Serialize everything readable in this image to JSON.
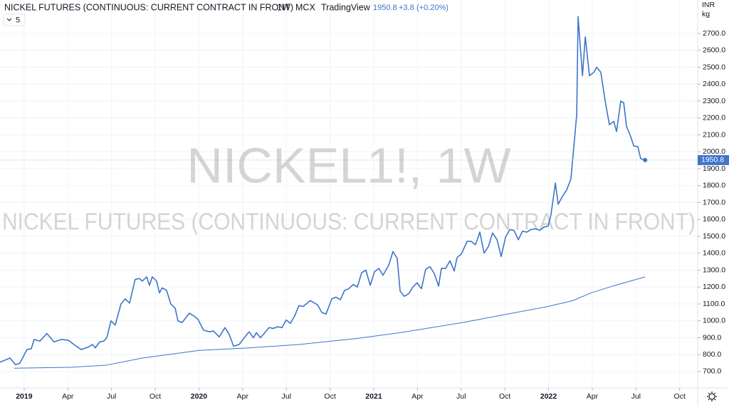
{
  "header": {
    "symbol_name": "NICKEL FUTURES (CONTINUOUS: CURRENT CONTRACT IN FRONT)",
    "interval": "1W",
    "exchange": "MCX",
    "source": "TradingView",
    "change": "+3.8",
    "change_percent": "(+0.20%)",
    "indicator_length": "5"
  },
  "axis_units": {
    "currency": "INR",
    "unit": "kg"
  },
  "watermark": {
    "ticker": "NICKEL1!, 1W",
    "description": "NICKEL FUTURES (CONTINUOUS: CURRENT CONTRACT IN FRONT)"
  },
  "chart_data": {
    "type": "line",
    "grid": true,
    "xlim": [
      2018.862,
      2022.853
    ],
    "ylim": [
      603,
      2898
    ],
    "xticks": [
      2019,
      {
        "value": 2019.25,
        "label": "Apr"
      },
      {
        "value": 2019.5,
        "label": "Jul"
      },
      {
        "value": 2019.75,
        "label": "Oct"
      },
      2020,
      {
        "value": 2020.25,
        "label": "Apr"
      },
      {
        "value": 2020.5,
        "label": "Jul"
      },
      {
        "value": 2020.75,
        "label": "Oct"
      },
      2021,
      {
        "value": 2021.25,
        "label": "Apr"
      },
      {
        "value": 2021.5,
        "label": "Jul"
      },
      {
        "value": 2021.75,
        "label": "Oct"
      },
      2022,
      {
        "value": 2022.25,
        "label": "Apr"
      },
      {
        "value": 2022.5,
        "label": "Jul"
      },
      {
        "value": 2022.75,
        "label": "Oct"
      }
    ],
    "yticks": [
      {
        "value": 700,
        "label": "700.0"
      },
      {
        "value": 800,
        "label": "800.0"
      },
      {
        "value": 900,
        "label": "900.0"
      },
      {
        "value": 1000,
        "label": "1000.0"
      },
      {
        "value": 1100,
        "label": "1100.0"
      },
      {
        "value": 1200,
        "label": "1200.0"
      },
      {
        "value": 1300,
        "label": "1300.0"
      },
      {
        "value": 1400,
        "label": "1400.0"
      },
      {
        "value": 1500,
        "label": "1500.0"
      },
      {
        "value": 1600,
        "label": "1600.0"
      },
      {
        "value": 1700,
        "label": "1700.0"
      },
      {
        "value": 1800,
        "label": "1800.0"
      },
      {
        "value": 1900,
        "label": "1900.0"
      },
      {
        "value": 2000,
        "label": "2000.0"
      },
      {
        "value": 2100,
        "label": "2100.0"
      },
      {
        "value": 2200,
        "label": "2200.0"
      },
      {
        "value": 2300,
        "label": "2300.0"
      },
      {
        "value": 2400,
        "label": "2400.0"
      },
      {
        "value": 2500,
        "label": "2500.0"
      },
      {
        "value": 2600,
        "label": "2600.0"
      },
      {
        "value": 2700,
        "label": "2700.0"
      }
    ],
    "series": [
      {
        "color": "#3f74c9",
        "width": 1.6,
        "x": [
          2018.862,
          2018.919,
          2018.951,
          2018.976,
          2019.016,
          2019.041,
          2019.057,
          2019.09,
          2019.13,
          2019.171,
          2019.212,
          2019.253,
          2019.285,
          2019.326,
          2019.367,
          2019.391,
          2019.407,
          2019.432,
          2019.456,
          2019.473,
          2019.497,
          2019.521,
          2019.554,
          2019.578,
          2019.603,
          2019.635,
          2019.66,
          2019.676,
          2019.701,
          2019.717,
          2019.733,
          2019.758,
          2019.774,
          2019.79,
          2019.815,
          2019.839,
          2019.864,
          2019.88,
          2019.904,
          2019.945,
          2019.969,
          2019.994,
          2020.026,
          2020.059,
          2020.083,
          2020.116,
          2020.149,
          2020.173,
          2020.198,
          2020.23,
          2020.263,
          2020.287,
          2020.312,
          2020.328,
          2020.352,
          2020.377,
          2020.401,
          2020.426,
          2020.45,
          2020.475,
          2020.499,
          2020.523,
          2020.548,
          2020.572,
          2020.597,
          2020.637,
          2020.678,
          2020.703,
          2020.727,
          2020.76,
          2020.784,
          2020.809,
          2020.833,
          2020.857,
          2020.882,
          2020.906,
          2020.931,
          2020.955,
          2020.98,
          2021.004,
          2021.029,
          2021.053,
          2021.086,
          2021.11,
          2021.134,
          2021.151,
          2021.175,
          2021.2,
          2021.224,
          2021.248,
          2021.273,
          2021.297,
          2021.322,
          2021.346,
          2021.371,
          2021.387,
          2021.411,
          2021.436,
          2021.46,
          2021.477,
          2021.501,
          2021.534,
          2021.558,
          2021.582,
          2021.607,
          2021.631,
          2021.656,
          2021.68,
          2021.705,
          2021.729,
          2021.754,
          2021.778,
          2021.802,
          2021.827,
          2021.851,
          2021.876,
          2021.9,
          2021.925,
          2021.949,
          2021.974,
          2021.998,
          2022.014,
          2022.039,
          2022.055,
          2022.079,
          2022.104,
          2022.128,
          2022.161,
          2022.169,
          2022.194,
          2022.21,
          2022.234,
          2022.259,
          2022.275,
          2022.299,
          2022.324,
          2022.348,
          2022.373,
          2022.389,
          2022.413,
          2022.43,
          2022.446,
          2022.47,
          2022.487,
          2022.511,
          2022.527,
          2022.552
        ],
        "values": [
          755,
          780,
          740,
          750,
          830,
          835,
          890,
          880,
          925,
          875,
          890,
          885,
          860,
          830,
          845,
          860,
          840,
          875,
          880,
          900,
          1000,
          975,
          1100,
          1130,
          1105,
          1245,
          1250,
          1235,
          1260,
          1210,
          1260,
          1235,
          1165,
          1195,
          1180,
          1100,
          1075,
          1000,
          990,
          1045,
          1030,
          1010,
          945,
          935,
          940,
          905,
          960,
          920,
          850,
          860,
          905,
          935,
          900,
          930,
          900,
          930,
          960,
          955,
          965,
          960,
          1005,
          985,
          1030,
          1090,
          1085,
          1120,
          1095,
          1050,
          1040,
          1130,
          1140,
          1125,
          1180,
          1190,
          1215,
          1200,
          1285,
          1300,
          1210,
          1290,
          1310,
          1270,
          1330,
          1410,
          1370,
          1175,
          1145,
          1160,
          1200,
          1225,
          1190,
          1305,
          1320,
          1280,
          1205,
          1310,
          1310,
          1355,
          1295,
          1375,
          1395,
          1470,
          1470,
          1450,
          1525,
          1400,
          1440,
          1520,
          1480,
          1380,
          1495,
          1540,
          1535,
          1480,
          1530,
          1525,
          1540,
          1545,
          1535,
          1555,
          1560,
          1630,
          1815,
          1690,
          1735,
          1775,
          1840,
          2220,
          2800,
          2450,
          2680,
          2450,
          2470,
          2500,
          2470,
          2300,
          2160,
          2180,
          2120,
          2300,
          2290,
          2150,
          2090,
          2035,
          2030,
          1960,
          1950.8
        ]
      },
      {
        "color": "#3f74c9",
        "width": 1,
        "x": [
          2018.943,
          2019.269,
          2019.473,
          2019.676,
          2020.002,
          2020.287,
          2020.572,
          2020.898,
          2021.151,
          2021.509,
          2021.713,
          2021.998,
          2022.14,
          2022.242,
          2022.365,
          2022.552
        ],
        "values": [
          720,
          725,
          738,
          780,
          825,
          840,
          860,
          895,
          930,
          990,
          1030,
          1085,
          1120,
          1165,
          1205,
          1260
        ]
      }
    ]
  }
}
